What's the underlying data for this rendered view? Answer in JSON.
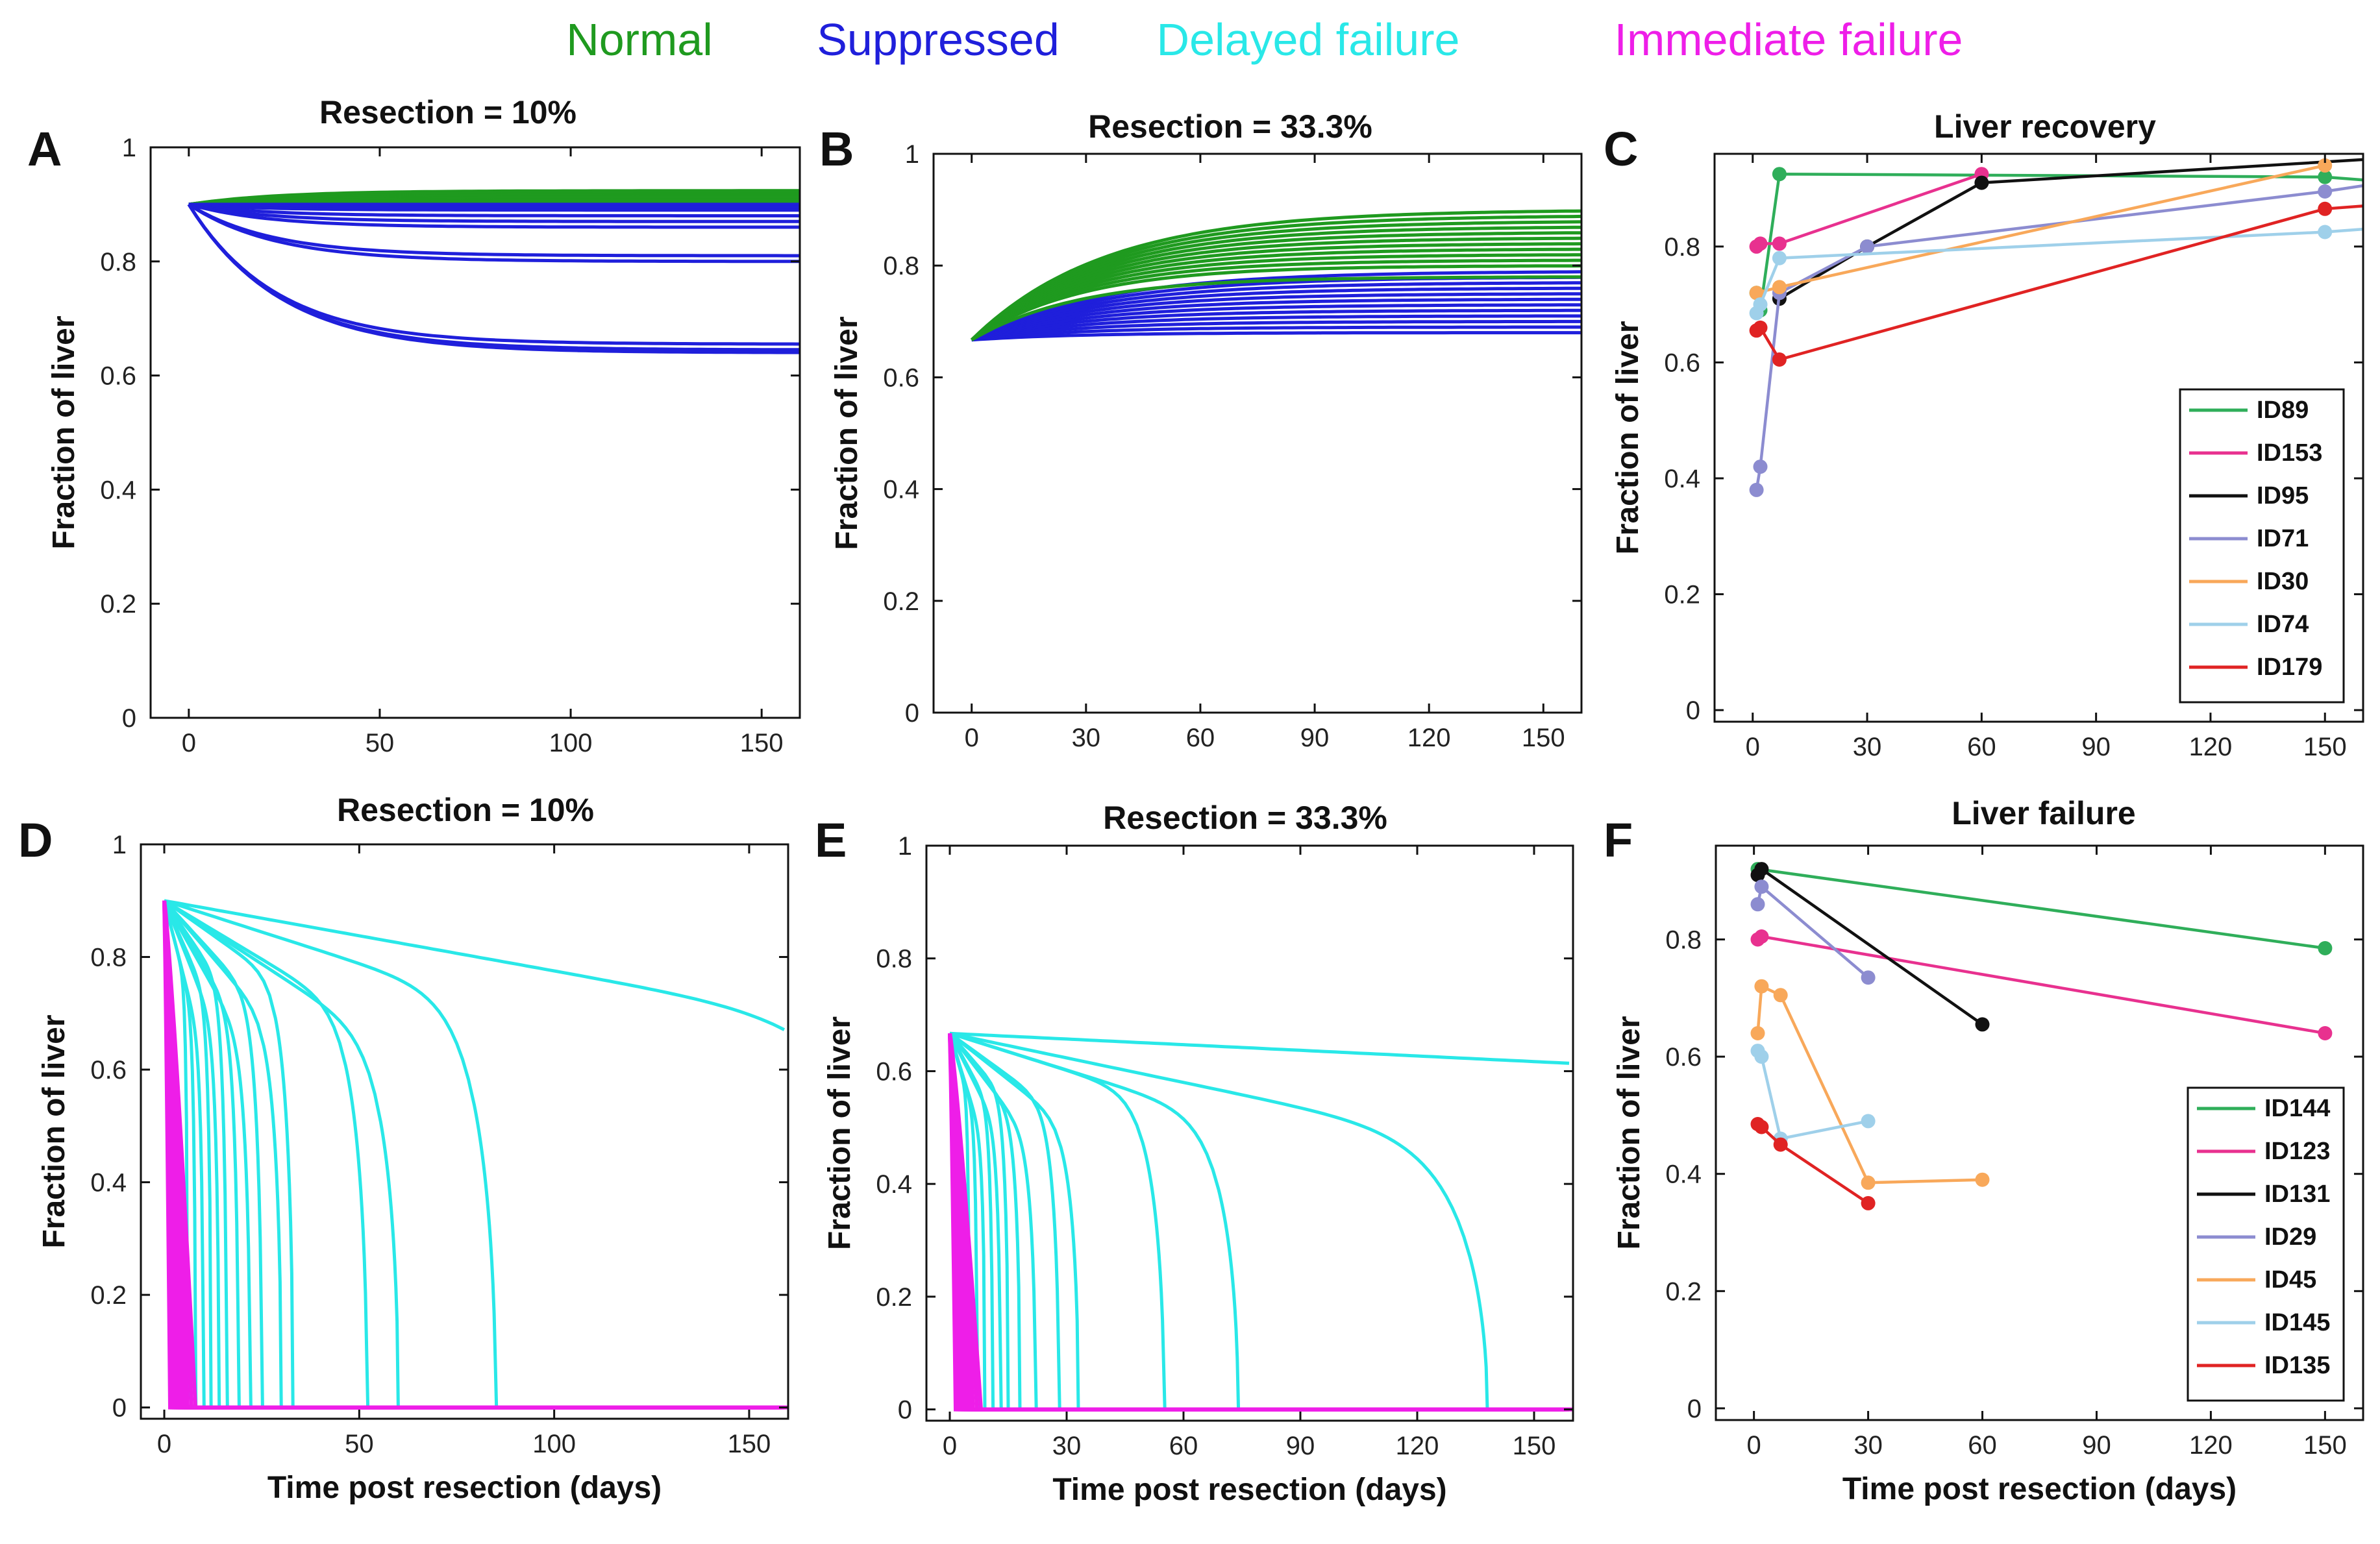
{
  "legend_top": [
    {
      "label": "Normal",
      "color": "#1f9a1f"
    },
    {
      "label": "Suppressed",
      "color": "#1f1fdb"
    },
    {
      "label": "Delayed failure",
      "color": "#29e8e8"
    },
    {
      "label": "Immediate failure",
      "color": "#ee1ee8"
    }
  ],
  "chart_data": [
    {
      "id": "A",
      "type": "line",
      "title": "Resection = 10%",
      "xlabel": "",
      "ylabel": "Fraction of liver",
      "xlim": [
        -10,
        160
      ],
      "ylim": [
        0,
        1
      ],
      "xticks": [
        0,
        50,
        100,
        150
      ],
      "yticks": [
        0,
        0.2,
        0.4,
        0.6,
        0.8,
        1
      ],
      "ytick_labels": [
        "0",
        "0.2",
        "0.4",
        "0.6",
        "0.8",
        "1"
      ],
      "curves": {
        "kind": "recovery",
        "start": 0.9,
        "x_end": 160,
        "rate": 18,
        "groups": [
          {
            "category": "Normal",
            "color": "#1f9a1f",
            "finals": [
              0.905,
              0.908,
              0.91,
              0.912,
              0.914,
              0.916,
              0.918,
              0.92,
              0.922,
              0.924
            ]
          },
          {
            "category": "Suppressed",
            "color": "#1f1fdb",
            "finals": [
              0.9,
              0.895,
              0.89,
              0.88,
              0.87,
              0.86,
              0.81,
              0.8,
              0.655,
              0.645,
              0.64
            ]
          }
        ]
      }
    },
    {
      "id": "B",
      "type": "line",
      "title": "Resection = 33.3%",
      "xlabel": "",
      "ylabel": "Fraction of liver",
      "xlim": [
        -10,
        160
      ],
      "ylim": [
        0,
        1
      ],
      "xticks": [
        0,
        30,
        60,
        90,
        120,
        150
      ],
      "yticks": [
        0,
        0.2,
        0.4,
        0.6,
        0.8,
        1
      ],
      "ytick_labels": [
        "0",
        "0.2",
        "0.4",
        "0.6",
        "0.8",
        "1"
      ],
      "curves": {
        "kind": "recovery",
        "start": 0.667,
        "x_end": 160,
        "rate": 28,
        "groups": [
          {
            "category": "Suppressed",
            "color": "#1f1fdb",
            "finals": [
              0.68,
              0.69,
              0.7,
              0.71,
              0.72,
              0.73,
              0.74,
              0.75,
              0.76,
              0.77,
              0.78,
              0.79
            ]
          },
          {
            "category": "Normal",
            "color": "#1f9a1f",
            "finals": [
              0.78,
              0.8,
              0.81,
              0.82,
              0.83,
              0.84,
              0.85,
              0.86,
              0.87,
              0.88,
              0.89,
              0.9
            ]
          }
        ]
      }
    },
    {
      "id": "C",
      "type": "line",
      "title": "Liver recovery",
      "xlabel": "",
      "ylabel": "Fraction of liver",
      "xlim": [
        -10,
        160
      ],
      "ylim": [
        -0.02,
        0.96
      ],
      "xticks": [
        0,
        30,
        60,
        90,
        120,
        150
      ],
      "yticks": [
        0,
        0.2,
        0.4,
        0.6,
        0.8
      ],
      "ytick_labels": [
        "0",
        "0.2",
        "0.4",
        "0.6",
        "0.8"
      ],
      "x_end": 160,
      "legend": "bottom-right",
      "series": [
        {
          "name": "ID89",
          "color": "#2fae5a",
          "x": [
            1,
            2,
            7,
            150,
            160
          ],
          "y": [
            0.72,
            0.69,
            0.925,
            0.92,
            0.915
          ]
        },
        {
          "name": "ID153",
          "color": "#e8318f",
          "x": [
            1,
            2,
            7,
            60
          ],
          "y": [
            0.8,
            0.805,
            0.805,
            0.925
          ]
        },
        {
          "name": "ID95",
          "color": "#111111",
          "x": [
            7,
            30,
            60,
            160
          ],
          "y": [
            0.71,
            0.8,
            0.91,
            0.95
          ]
        },
        {
          "name": "ID71",
          "color": "#8c8cd0",
          "x": [
            1,
            2,
            7,
            30,
            150,
            160
          ],
          "y": [
            0.38,
            0.42,
            0.72,
            0.8,
            0.895,
            0.905
          ]
        },
        {
          "name": "ID30",
          "color": "#f8a85a",
          "x": [
            1,
            7,
            150
          ],
          "y": [
            0.72,
            0.73,
            0.94
          ]
        },
        {
          "name": "ID74",
          "color": "#9fd0ea",
          "x": [
            1,
            2,
            7,
            150,
            160
          ],
          "y": [
            0.685,
            0.7,
            0.78,
            0.825,
            0.83
          ]
        },
        {
          "name": "ID179",
          "color": "#e02323",
          "x": [
            1,
            2,
            7,
            150,
            160
          ],
          "y": [
            0.655,
            0.66,
            0.605,
            0.865,
            0.87
          ]
        }
      ]
    },
    {
      "id": "D",
      "type": "line",
      "title": "Resection = 10%",
      "xlabel": "Time post resection (days)",
      "ylabel": "Fraction of liver",
      "xlim": [
        -6,
        160
      ],
      "ylim": [
        -0.02,
        1
      ],
      "xticks": [
        0,
        50,
        100,
        150
      ],
      "yticks": [
        0,
        0.2,
        0.4,
        0.6,
        0.8,
        1
      ],
      "ytick_labels": [
        "0",
        "0.2",
        "0.4",
        "0.6",
        "0.8",
        "1"
      ],
      "curves": {
        "kind": "failure",
        "start": 0.9,
        "x_end": 160,
        "immediate": {
          "category": "Immediate failure",
          "color": "#ee1ee8",
          "fail_days": [
            1.5,
            2,
            2.5,
            3,
            3.5,
            4,
            4.5,
            5,
            5.5,
            6,
            7,
            8
          ]
        },
        "delayed": {
          "category": "Delayed failure",
          "color": "#29e8e8",
          "fail_days": [
            6,
            8,
            10,
            12,
            14,
            16,
            19,
            22,
            25,
            30,
            33,
            52,
            60,
            85,
            195
          ]
        }
      }
    },
    {
      "id": "E",
      "type": "line",
      "title": "Resection = 33.3%",
      "xlabel": "Time post resection (days)",
      "ylabel": "Fraction of liver",
      "xlim": [
        -6,
        160
      ],
      "ylim": [
        -0.02,
        1
      ],
      "xticks": [
        0,
        30,
        60,
        90,
        120,
        150
      ],
      "yticks": [
        0,
        0.2,
        0.4,
        0.6,
        0.8,
        1
      ],
      "ytick_labels": [
        "0",
        "0.2",
        "0.4",
        "0.6",
        "0.8",
        "1"
      ],
      "curves": {
        "kind": "failure",
        "start": 0.667,
        "x_end": 160,
        "immediate": {
          "category": "Immediate failure",
          "color": "#ee1ee8",
          "fail_days": [
            1.5,
            2,
            2.5,
            3,
            3.5,
            4,
            4.5,
            5,
            5.5,
            6,
            7,
            8
          ]
        },
        "delayed": {
          "category": "Delayed failure",
          "color": "#29e8e8",
          "fail_days": [
            5,
            7,
            9,
            11,
            13,
            15,
            18,
            22,
            28,
            33,
            55,
            74,
            138,
            420
          ]
        }
      }
    },
    {
      "id": "F",
      "type": "line",
      "title": "Liver failure",
      "xlabel": "Time post resection (days)",
      "ylabel": "Fraction of liver",
      "xlim": [
        -10,
        160
      ],
      "ylim": [
        -0.02,
        0.96
      ],
      "xticks": [
        0,
        30,
        60,
        90,
        120,
        150
      ],
      "yticks": [
        0,
        0.2,
        0.4,
        0.6,
        0.8
      ],
      "ytick_labels": [
        "0",
        "0.2",
        "0.4",
        "0.6",
        "0.8"
      ],
      "legend": "bottom-right",
      "series": [
        {
          "name": "ID144",
          "color": "#2fae5a",
          "x": [
            1,
            150
          ],
          "y": [
            0.92,
            0.785
          ]
        },
        {
          "name": "ID123",
          "color": "#e8318f",
          "x": [
            1,
            2,
            150
          ],
          "y": [
            0.8,
            0.805,
            0.64
          ]
        },
        {
          "name": "ID131",
          "color": "#111111",
          "x": [
            1,
            2,
            60
          ],
          "y": [
            0.91,
            0.92,
            0.655
          ]
        },
        {
          "name": "ID29",
          "color": "#8c8cd0",
          "x": [
            1,
            2,
            30
          ],
          "y": [
            0.86,
            0.89,
            0.735
          ]
        },
        {
          "name": "ID45",
          "color": "#f8a85a",
          "x": [
            1,
            2,
            7,
            30,
            60
          ],
          "y": [
            0.64,
            0.72,
            0.705,
            0.385,
            0.39
          ]
        },
        {
          "name": "ID145",
          "color": "#9fd0ea",
          "x": [
            1,
            2,
            7,
            30
          ],
          "y": [
            0.61,
            0.6,
            0.46,
            0.49
          ]
        },
        {
          "name": "ID135",
          "color": "#e02323",
          "x": [
            1,
            2,
            7,
            30
          ],
          "y": [
            0.485,
            0.48,
            0.45,
            0.35
          ]
        }
      ]
    }
  ]
}
